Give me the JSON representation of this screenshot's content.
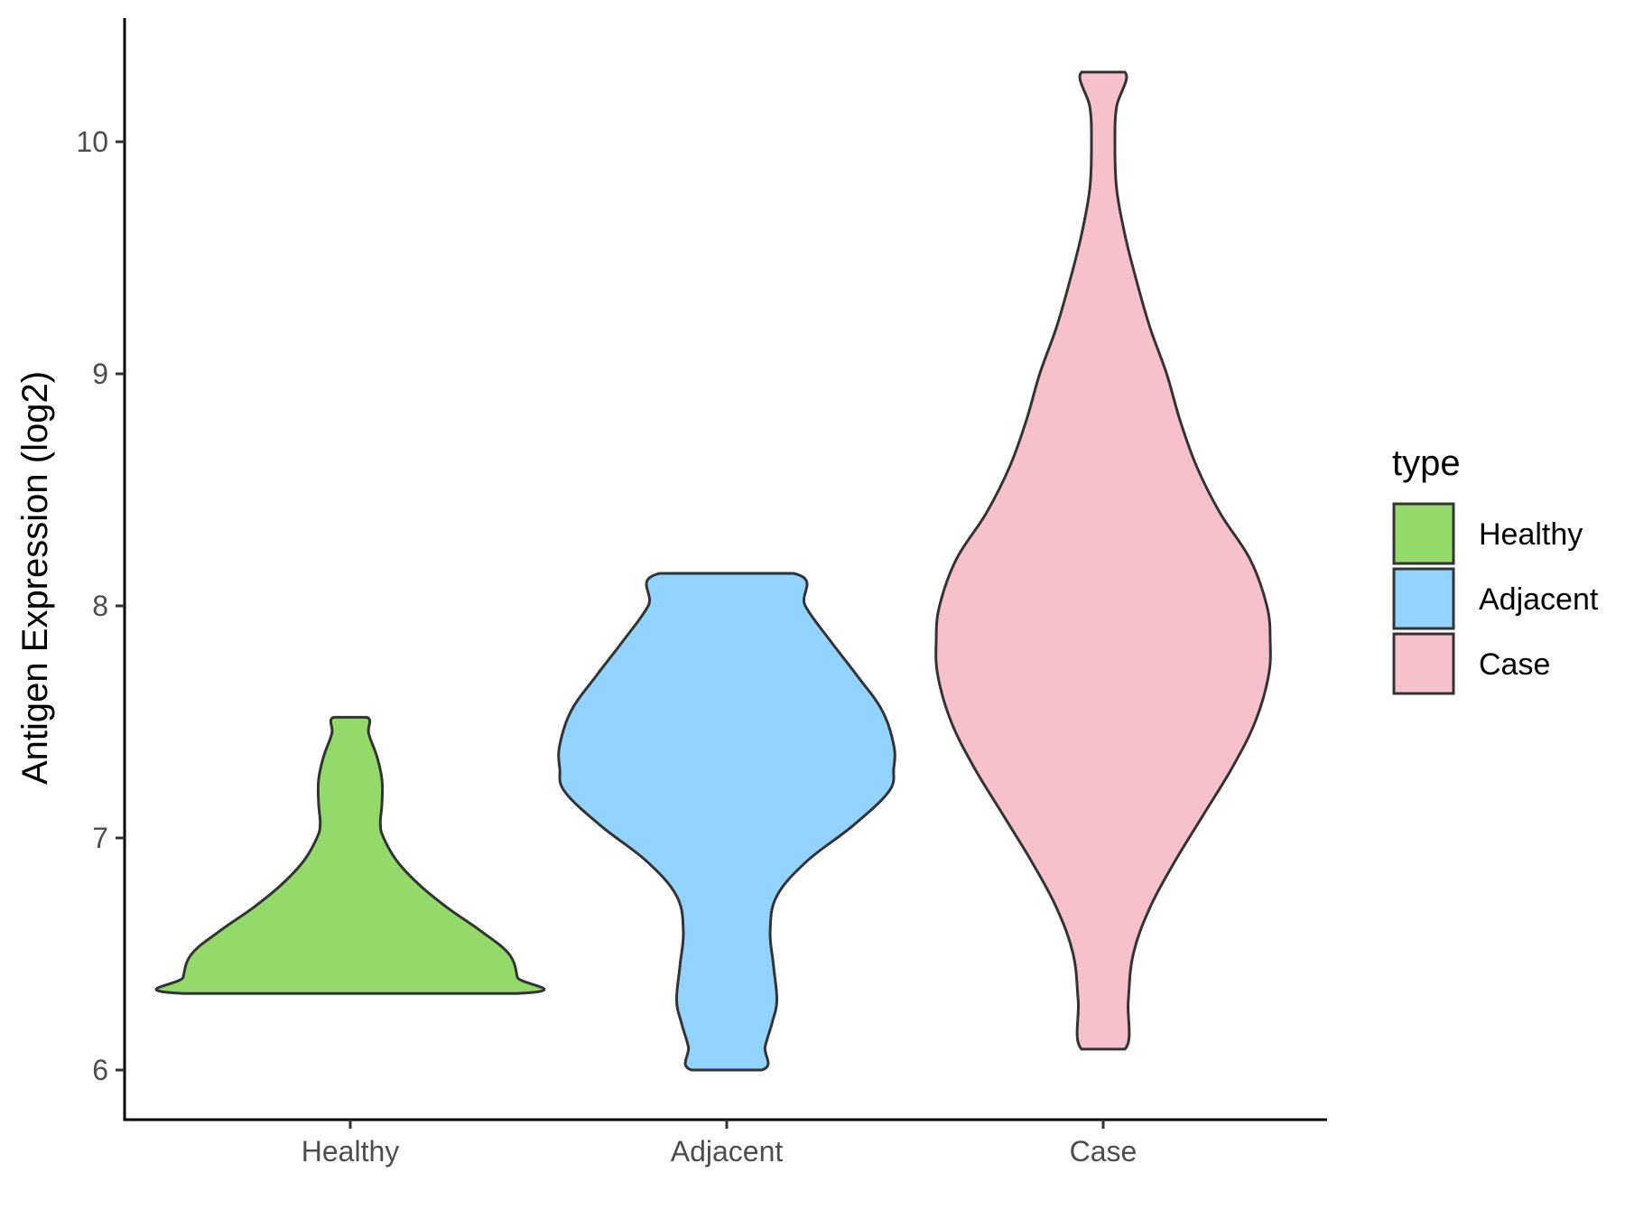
{
  "chart_data": {
    "type": "violin",
    "title": "",
    "xlabel": "",
    "ylabel": "Antigen Expression (log2)",
    "ylim": [
      5.8,
      10.5
    ],
    "yticks": [
      6,
      7,
      8,
      9,
      10
    ],
    "grid": false,
    "legend": {
      "title": "type",
      "position": "right"
    },
    "categories": [
      "Healthy",
      "Adjacent",
      "Case"
    ],
    "series": [
      {
        "name": "Healthy",
        "color": "#93DA6A",
        "min": 6.33,
        "max": 7.52,
        "density": [
          [
            6.33,
            1.0
          ],
          [
            6.4,
            1.0
          ],
          [
            6.5,
            0.95
          ],
          [
            6.6,
            0.78
          ],
          [
            6.7,
            0.58
          ],
          [
            6.8,
            0.41
          ],
          [
            6.9,
            0.28
          ],
          [
            7.0,
            0.2
          ],
          [
            7.06,
            0.18
          ],
          [
            7.15,
            0.19
          ],
          [
            7.25,
            0.19
          ],
          [
            7.35,
            0.16
          ],
          [
            7.45,
            0.11
          ],
          [
            7.52,
            0.1
          ]
        ]
      },
      {
        "name": "Adjacent",
        "color": "#93D3FF",
        "min": 6.0,
        "max": 8.14,
        "density": [
          [
            6.0,
            0.21
          ],
          [
            6.1,
            0.23
          ],
          [
            6.2,
            0.27
          ],
          [
            6.3,
            0.3
          ],
          [
            6.45,
            0.28
          ],
          [
            6.6,
            0.26
          ],
          [
            6.75,
            0.3
          ],
          [
            6.9,
            0.48
          ],
          [
            7.05,
            0.75
          ],
          [
            7.2,
            0.97
          ],
          [
            7.3,
            1.0
          ],
          [
            7.4,
            1.0
          ],
          [
            7.55,
            0.93
          ],
          [
            7.7,
            0.78
          ],
          [
            7.85,
            0.62
          ],
          [
            8.0,
            0.47
          ],
          [
            8.14,
            0.4
          ]
        ]
      },
      {
        "name": "Case",
        "color": "#F7C1CC",
        "min": 6.09,
        "max": 10.3,
        "density": [
          [
            6.09,
            0.13
          ],
          [
            6.3,
            0.15
          ],
          [
            6.5,
            0.18
          ],
          [
            6.7,
            0.28
          ],
          [
            6.9,
            0.43
          ],
          [
            7.1,
            0.6
          ],
          [
            7.3,
            0.77
          ],
          [
            7.5,
            0.91
          ],
          [
            7.7,
            0.99
          ],
          [
            7.85,
            1.0
          ],
          [
            8.0,
            0.98
          ],
          [
            8.2,
            0.88
          ],
          [
            8.4,
            0.7
          ],
          [
            8.6,
            0.56
          ],
          [
            8.8,
            0.46
          ],
          [
            9.0,
            0.38
          ],
          [
            9.2,
            0.28
          ],
          [
            9.4,
            0.2
          ],
          [
            9.6,
            0.13
          ],
          [
            9.8,
            0.08
          ],
          [
            10.0,
            0.07
          ],
          [
            10.15,
            0.08
          ],
          [
            10.3,
            0.13
          ]
        ]
      }
    ]
  }
}
